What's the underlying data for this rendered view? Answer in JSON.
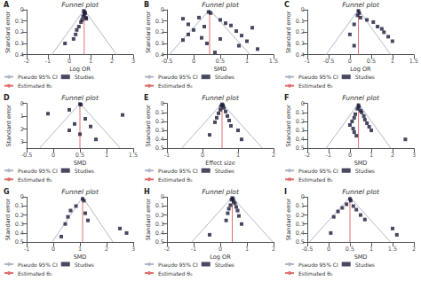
{
  "chart_data": [
    {
      "type": "scatter",
      "title": "Funnel plot",
      "annotations": [
        "A"
      ],
      "xlabel": "Log OR",
      "ylabel": "Standard error",
      "xlim": [
        -2,
        3
      ],
      "xticks": [
        -2,
        -1,
        0,
        1,
        2,
        3
      ],
      "ylim": [
        0.4,
        0
      ],
      "yticks": [
        0,
        0.1,
        0.2,
        0.3,
        0.4
      ],
      "grid": false,
      "legend": "lower left",
      "series": [
        {
          "name": "Pseudo 95% CI",
          "type": "line",
          "color": "#b0b8c8",
          "x": [
            -0.82,
            0.7,
            2.22
          ],
          "values": [
            0.4,
            0,
            0.4
          ]
        },
        {
          "name": "Studies",
          "type": "scatter",
          "marker": "square",
          "color": "#1a1a3a",
          "x": [
            0.68,
            0.72,
            0.75,
            0.7,
            0.65,
            0.78,
            0.6,
            0.55,
            0.8,
            0.45,
            0.35,
            0.3,
            0.2,
            -0.2
          ],
          "values": [
            0.01,
            0.02,
            0.03,
            0.04,
            0.06,
            0.07,
            0.09,
            0.11,
            0.08,
            0.15,
            0.18,
            0.22,
            0.26,
            0.3
          ]
        },
        {
          "name": "Estimated θ₀",
          "type": "line",
          "color": "#e07070",
          "x": [
            0.7,
            0.7
          ],
          "values": [
            0.4,
            0
          ]
        }
      ]
    },
    {
      "type": "scatter",
      "title": "Funnel plot",
      "annotations": [
        "B"
      ],
      "xlabel": "SMD",
      "ylabel": "Standard error",
      "xlim": [
        -0.5,
        1.5
      ],
      "xticks": [
        -0.5,
        0,
        0.5,
        1,
        1.5
      ],
      "ylim": [
        0.4,
        0
      ],
      "yticks": [
        0,
        0.1,
        0.2,
        0.3,
        0.4
      ],
      "grid": false,
      "legend": "lower left",
      "series": [
        {
          "name": "Pseudo 95% CI",
          "type": "line",
          "color": "#b0b8c8",
          "x": [
            -0.46,
            0.3,
            1.06
          ],
          "values": [
            0.4,
            0,
            0.4
          ]
        },
        {
          "name": "Studies",
          "type": "scatter",
          "marker": "square",
          "color": "#1a1a3a",
          "x": [
            0.28,
            0.32,
            -0.2,
            0.1,
            0.5,
            0.6,
            -0.1,
            0.7,
            0.2,
            1.1,
            0.0,
            0.8,
            -0.1,
            0.9,
            0.15,
            0.5,
            -0.2,
            1.0,
            0.25,
            0.85,
            1.2,
            0.4
          ],
          "values": [
            0.02,
            0.03,
            0.08,
            0.07,
            0.09,
            0.12,
            0.13,
            0.14,
            0.15,
            0.16,
            0.18,
            0.19,
            0.22,
            0.23,
            0.25,
            0.26,
            0.27,
            0.28,
            0.3,
            0.32,
            0.35,
            0.38
          ]
        },
        {
          "name": "Estimated θ₀",
          "type": "line",
          "color": "#e07070",
          "x": [
            0.3,
            0.3
          ],
          "values": [
            0.4,
            0
          ]
        }
      ]
    },
    {
      "type": "scatter",
      "title": "Funnel plot",
      "annotations": [
        "C"
      ],
      "xlabel": "Log OR",
      "ylabel": "Standard error",
      "xlim": [
        -1,
        1.5
      ],
      "xticks": [
        -1,
        -0.5,
        0,
        0.5,
        1,
        1.5
      ],
      "ylim": [
        0.4,
        0
      ],
      "yticks": [
        0,
        0.1,
        0.2,
        0.3,
        0.4
      ],
      "grid": false,
      "legend": "lower left",
      "series": [
        {
          "name": "Pseudo 95% CI",
          "type": "line",
          "color": "#b0b8c8",
          "x": [
            -0.56,
            0.2,
            0.96
          ],
          "values": [
            0.4,
            0,
            0.4
          ]
        },
        {
          "name": "Studies",
          "type": "scatter",
          "marker": "square",
          "color": "#1a1a3a",
          "x": [
            0.2,
            0.22,
            0.18,
            0.25,
            0.4,
            0.55,
            0.1,
            0.65,
            0.75,
            0.8,
            0.0,
            0.9,
            1.0,
            0.1
          ],
          "values": [
            0.01,
            0.03,
            0.05,
            0.07,
            0.09,
            0.11,
            0.13,
            0.15,
            0.17,
            0.2,
            0.22,
            0.24,
            0.28,
            0.32
          ]
        },
        {
          "name": "Estimated θ₀",
          "type": "line",
          "color": "#e07070",
          "x": [
            0.2,
            0.2
          ],
          "values": [
            0.4,
            0
          ]
        }
      ]
    },
    {
      "type": "scatter",
      "title": "Funnel plot",
      "annotations": [
        "D"
      ],
      "xlabel": "SMD",
      "ylabel": "Standard error",
      "xlim": [
        -0.5,
        1.5
      ],
      "xticks": [
        -0.5,
        0,
        0.5,
        1,
        1.5
      ],
      "ylim": [
        3.5,
        0
      ],
      "yticks": [
        0,
        1,
        2,
        3
      ],
      "grid": false,
      "legend": "lower left",
      "series": [
        {
          "name": "Pseudo 95% CI",
          "type": "line",
          "color": "#b0b8c8",
          "x": [
            -0.26,
            0.5,
            1.26
          ],
          "values": [
            3.5,
            0,
            3.5
          ]
        },
        {
          "name": "Studies",
          "type": "scatter",
          "marker": "square",
          "color": "#1a1a3a",
          "x": [
            0.5,
            0.52,
            0.3,
            -0.1,
            1.3,
            0.6,
            0.4,
            0.7,
            0.3,
            0.5,
            0.8
          ],
          "values": [
            0.05,
            0.1,
            0.5,
            0.8,
            0.9,
            1.2,
            1.6,
            1.8,
            2.1,
            2.4,
            2.8
          ]
        },
        {
          "name": "Estimated θ₀",
          "type": "line",
          "color": "#e07070",
          "x": [
            0.5,
            0.5
          ],
          "values": [
            3.5,
            0
          ]
        }
      ]
    },
    {
      "type": "scatter",
      "title": "Funnel plot",
      "annotations": [
        "E"
      ],
      "xlabel": "Effect size",
      "ylabel": "Standard error",
      "xlim": [
        -1,
        2
      ],
      "xticks": [
        -1,
        0,
        1,
        2
      ],
      "ylim": [
        0.5,
        0
      ],
      "yticks": [
        0,
        0.1,
        0.2,
        0.3,
        0.4,
        0.5
      ],
      "grid": false,
      "legend": "lower left",
      "series": [
        {
          "name": "Pseudo 95% CI",
          "type": "line",
          "color": "#b0b8c8",
          "x": [
            -0.59,
            0.55,
            1.69
          ],
          "values": [
            0.5,
            0,
            0.5
          ]
        },
        {
          "name": "Studies",
          "type": "scatter",
          "marker": "square",
          "color": "#1a1a3a",
          "x": [
            0.55,
            0.58,
            0.52,
            0.6,
            0.5,
            0.65,
            0.45,
            0.7,
            0.4,
            0.75,
            0.35,
            0.8,
            1.0,
            0.2,
            1.1
          ],
          "values": [
            0.01,
            0.02,
            0.03,
            0.05,
            0.07,
            0.09,
            0.11,
            0.14,
            0.16,
            0.19,
            0.21,
            0.25,
            0.3,
            0.35,
            0.4
          ]
        },
        {
          "name": "Estimated θ₀",
          "type": "line",
          "color": "#e07070",
          "x": [
            0.55,
            0.55
          ],
          "values": [
            0.5,
            0
          ]
        }
      ]
    },
    {
      "type": "scatter",
      "title": "Funnel plot",
      "annotations": [
        "F"
      ],
      "xlabel": "SMD",
      "ylabel": "Standard error",
      "xlim": [
        -2,
        3
      ],
      "xticks": [
        -2,
        -1,
        0,
        1,
        2,
        3
      ],
      "ylim": [
        0.5,
        0
      ],
      "yticks": [
        0,
        0.1,
        0.2,
        0.3,
        0.4,
        0.5
      ],
      "grid": false,
      "legend": "lower left",
      "series": [
        {
          "name": "Pseudo 95% CI",
          "type": "line",
          "color": "#b0b8c8",
          "x": [
            -1.12,
            0.4,
            1.92
          ],
          "values": [
            0.5,
            0,
            0.5
          ]
        },
        {
          "name": "Studies",
          "type": "scatter",
          "marker": "square",
          "color": "#1a1a3a",
          "x": [
            0.4,
            0.42,
            0.35,
            0.5,
            0.55,
            0.25,
            0.65,
            0.2,
            0.7,
            0.1,
            0.8,
            0.0,
            0.9,
            0.15,
            1.0,
            0.2,
            2.6,
            0.3
          ],
          "values": [
            0.02,
            0.04,
            0.06,
            0.08,
            0.1,
            0.12,
            0.14,
            0.16,
            0.18,
            0.2,
            0.22,
            0.24,
            0.26,
            0.28,
            0.3,
            0.32,
            0.4,
            0.36
          ]
        },
        {
          "name": "Estimated θ₀",
          "type": "line",
          "color": "#e07070",
          "x": [
            0.4,
            0.4
          ],
          "values": [
            0.5,
            0
          ]
        }
      ]
    },
    {
      "type": "scatter",
      "title": "Funnel plot",
      "annotations": [
        "G"
      ],
      "xlabel": "SMD",
      "ylabel": "Standard error",
      "xlim": [
        -1,
        3
      ],
      "xticks": [
        -1,
        0,
        1,
        2,
        3
      ],
      "ylim": [
        0.5,
        0
      ],
      "yticks": [
        0,
        0.1,
        0.2,
        0.3,
        0.4,
        0.5
      ],
      "grid": false,
      "legend": "lower left",
      "series": [
        {
          "name": "Pseudo 95% CI",
          "type": "line",
          "color": "#b0b8c8",
          "x": [
            -0.04,
            1.1,
            2.24
          ],
          "values": [
            0.5,
            0,
            0.5
          ]
        },
        {
          "name": "Studies",
          "type": "scatter",
          "marker": "square",
          "color": "#1a1a3a",
          "x": [
            1.1,
            1.15,
            0.85,
            0.65,
            1.2,
            0.55,
            1.3,
            0.45,
            2.5,
            2.75,
            0.3
          ],
          "values": [
            0.02,
            0.04,
            0.1,
            0.15,
            0.18,
            0.22,
            0.26,
            0.3,
            0.35,
            0.4,
            0.44
          ]
        },
        {
          "name": "Estimated θ₀",
          "type": "line",
          "color": "#e07070",
          "x": [
            1.1,
            1.1
          ],
          "values": [
            0.5,
            0
          ]
        }
      ]
    },
    {
      "type": "scatter",
      "title": "Funnel plot",
      "annotations": [
        "H"
      ],
      "xlabel": "Log OR",
      "ylabel": "Standard error",
      "xlim": [
        -2,
        2
      ],
      "xticks": [
        -2,
        -1,
        0,
        1,
        2
      ],
      "ylim": [
        0.5,
        0
      ],
      "yticks": [
        0,
        0.1,
        0.2,
        0.3,
        0.4,
        0.5
      ],
      "grid": false,
      "legend": "lower left",
      "series": [
        {
          "name": "Pseudo 95% CI",
          "type": "line",
          "color": "#b0b8c8",
          "x": [
            -1.07,
            0.45,
            1.97
          ],
          "values": [
            0.5,
            0,
            0.5
          ]
        },
        {
          "name": "Studies",
          "type": "scatter",
          "marker": "square",
          "color": "#1a1a3a",
          "x": [
            0.45,
            0.48,
            0.42,
            0.5,
            0.55,
            0.38,
            0.6,
            0.32,
            0.65,
            0.28,
            0.7,
            0.22,
            0.8,
            -0.4
          ],
          "values": [
            0.01,
            0.02,
            0.03,
            0.05,
            0.07,
            0.09,
            0.11,
            0.13,
            0.15,
            0.18,
            0.21,
            0.26,
            0.3,
            0.42
          ]
        },
        {
          "name": "Estimated θ₀",
          "type": "line",
          "color": "#e07070",
          "x": [
            0.45,
            0.45
          ],
          "values": [
            0.5,
            0
          ]
        }
      ]
    },
    {
      "type": "scatter",
      "title": "Funnel plot",
      "annotations": [
        "I"
      ],
      "xlabel": "SMD",
      "ylabel": "Standard error",
      "xlim": [
        -0.5,
        2
      ],
      "xticks": [
        -0.5,
        0,
        0.5,
        1,
        1.5,
        2
      ],
      "ylim": [
        0.5,
        0
      ],
      "yticks": [
        0,
        0.1,
        0.2,
        0.3,
        0.4,
        0.5
      ],
      "grid": false,
      "legend": "lower left",
      "series": [
        {
          "name": "Pseudo 95% CI",
          "type": "line",
          "color": "#b0b8c8",
          "x": [
            -0.45,
            0.5,
            1.45
          ],
          "values": [
            0.5,
            0,
            0.5
          ]
        },
        {
          "name": "Studies",
          "type": "scatter",
          "marker": "square",
          "color": "#1a1a3a",
          "x": [
            0.5,
            0.52,
            0.42,
            0.58,
            0.32,
            0.65,
            0.22,
            0.75,
            0.12,
            0.85,
            1.5,
            1.6,
            0.05
          ],
          "values": [
            0.02,
            0.04,
            0.08,
            0.1,
            0.12,
            0.14,
            0.16,
            0.2,
            0.22,
            0.25,
            0.35,
            0.42,
            0.4
          ]
        },
        {
          "name": "Estimated θ₀",
          "type": "line",
          "color": "#e07070",
          "x": [
            0.5,
            0.5
          ],
          "values": [
            0.5,
            0
          ]
        }
      ]
    }
  ]
}
